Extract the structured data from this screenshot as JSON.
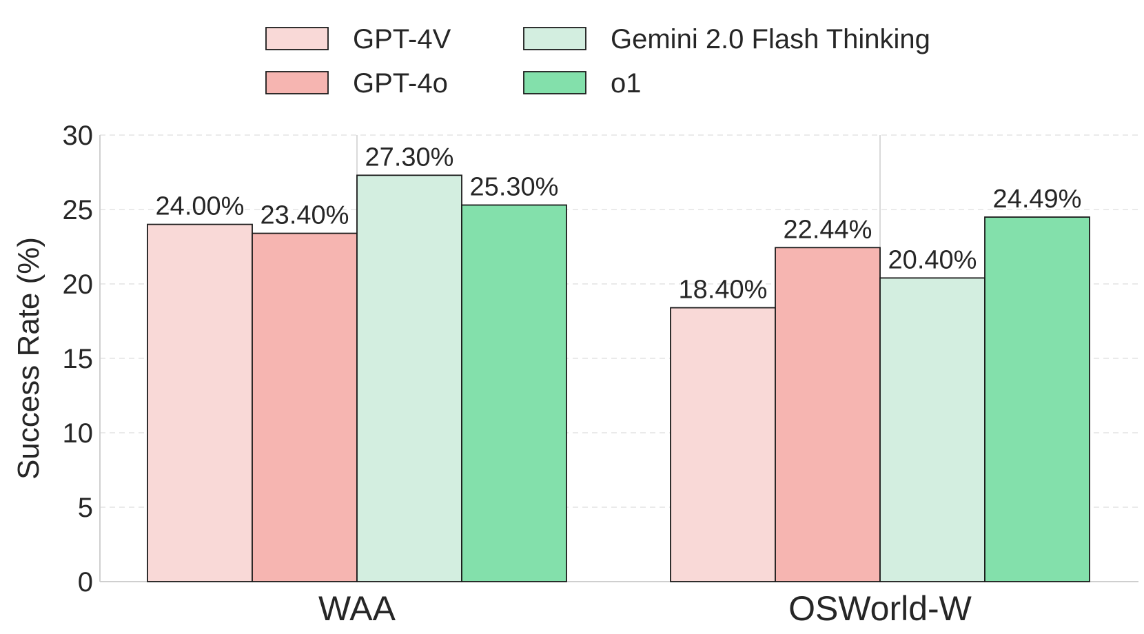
{
  "chart_data": {
    "type": "bar",
    "categories": [
      "WAA",
      "OSWorld-W"
    ],
    "series": [
      {
        "name": "GPT-4V",
        "color": "#f9d9d7",
        "values": [
          24.0,
          18.4
        ],
        "labels": [
          "24.00%",
          "18.40%"
        ]
      },
      {
        "name": "GPT-4o",
        "color": "#f6b5b1",
        "values": [
          23.4,
          22.44
        ],
        "labels": [
          "23.40%",
          "22.44%"
        ]
      },
      {
        "name": "Gemini 2.0 Flash Thinking",
        "color": "#d3eee0",
        "values": [
          27.3,
          20.4
        ],
        "labels": [
          "27.30%",
          "20.40%"
        ]
      },
      {
        "name": "o1",
        "color": "#83e0ab",
        "values": [
          25.3,
          24.49
        ],
        "labels": [
          "25.30%",
          "24.49%"
        ]
      }
    ],
    "title": "",
    "xlabel": "",
    "ylabel": "Success Rate (%)",
    "ylim": [
      0,
      30
    ],
    "yticks": [
      0,
      5,
      10,
      15,
      20,
      25,
      30
    ],
    "grid": "horizontal dashed",
    "legend": "top-center, 2 columns"
  }
}
